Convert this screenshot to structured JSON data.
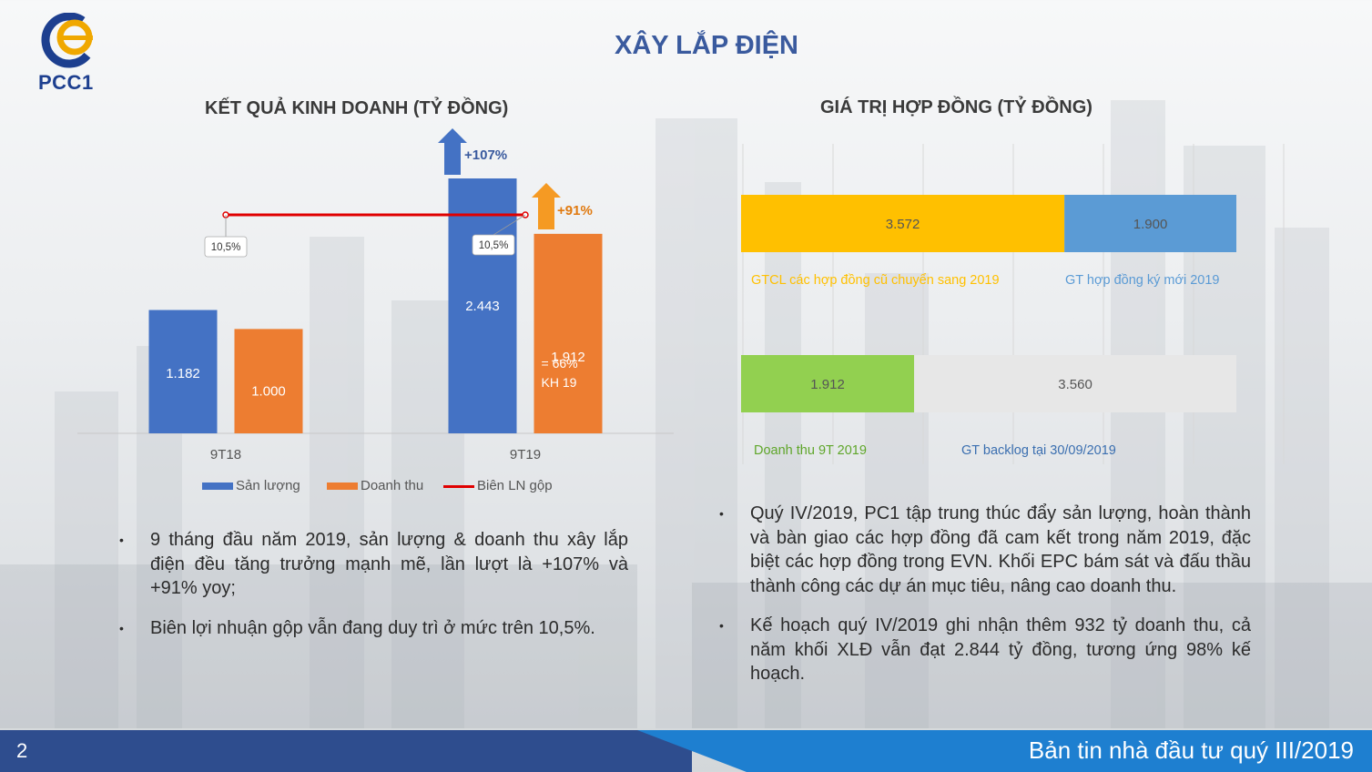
{
  "header": {
    "title": "XÂY LẮP ĐIỆN",
    "logo_text": "PCC1"
  },
  "left_chart": {
    "title": "KẾT QUẢ KINH DOANH (TỶ ĐỒNG)"
  },
  "right_chart": {
    "title": "GIÁ TRỊ HỢP ĐỒNG (TỶ ĐỒNG)"
  },
  "chart_data": [
    {
      "type": "bar",
      "title": "KẾT QUẢ KINH DOANH (TỶ ĐỒNG)",
      "categories": [
        "9T18",
        "9T19"
      ],
      "series": [
        {
          "name": "Sản lượng",
          "values": [
            1182,
            2443
          ],
          "labels": [
            "1.182",
            "2.443"
          ],
          "color": "#4472c4"
        },
        {
          "name": "Doanh thu",
          "values": [
            1000,
            1912
          ],
          "labels": [
            "1.000",
            "1.912"
          ],
          "color": "#ed7d31"
        }
      ],
      "line_series": {
        "name": "Biên LN gộp",
        "values": [
          10.5,
          10.5
        ],
        "labels": [
          "10,5%",
          "10,5%"
        ],
        "color": "#e00000"
      },
      "annotations": {
        "growth_sanluong": "+107%",
        "growth_doanhthu": "+91%",
        "plan_note_1": "= 66%",
        "plan_note_2": "KH 19"
      },
      "ylim": [
        0,
        2700
      ],
      "legend": "bottom",
      "grid": false
    },
    {
      "type": "bar",
      "orientation": "horizontal-stacked",
      "title": "GIÁ TRỊ HỢP ĐỒNG (TỶ ĐỒNG)",
      "rows": [
        {
          "segments": [
            {
              "name": "GTCL các hợp đồng cũ chuyển sang 2019",
              "value": 3572,
              "label": "3.572",
              "color": "#ffc000"
            },
            {
              "name": "GT hợp đồng ký mới 2019",
              "value": 1900,
              "label": "1.900",
              "color": "#5b9bd5"
            }
          ]
        },
        {
          "segments": [
            {
              "name": "Doanh thu 9T 2019",
              "value": 1912,
              "label": "1.912",
              "color": "#92d050"
            },
            {
              "name": "GT backlog tại 30/09/2019",
              "value": 3560,
              "label": "3.560",
              "color": "#e7e7e7"
            }
          ]
        }
      ],
      "grid": true
    }
  ],
  "bullets_left": [
    "9 tháng đầu năm 2019, sản lượng & doanh thu xây lắp điện đều tăng trưởng mạnh mẽ, lần lượt là +107% và +91% yoy;",
    "Biên lợi nhuận gộp vẫn đang duy trì ở mức trên 10,5%."
  ],
  "bullets_right": [
    "Quý IV/2019, PC1 tập trung thúc đẩy sản lượng, hoàn thành và bàn giao các hợp đồng đã cam kết trong năm 2019, đặc biệt các hợp đồng trong EVN. Khối EPC bám sát và đấu thầu thành công các dự án mục tiêu, nâng cao doanh thu.",
    "Kế hoạch quý IV/2019 ghi nhận thêm 932 tỷ doanh thu, cả năm khối XLĐ vẫn đạt 2.844 tỷ đồng, tương ứng 98% kế hoạch."
  ],
  "bullet_symbol": "•",
  "footer": {
    "page_number": "2",
    "text": "Bản tin nhà đầu tư quý III/2019"
  },
  "colors": {
    "title_blue": "#3a5a9e",
    "footer_dark": "#2e4d8e",
    "footer_light": "#1e7fd0"
  }
}
